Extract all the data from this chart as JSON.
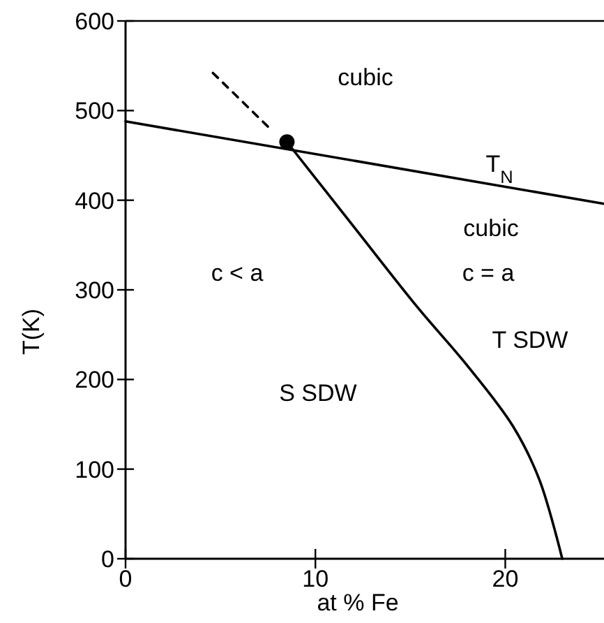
{
  "chart_data": {
    "type": "line",
    "xlabel": "at % Fe",
    "ylabel": "T(K)",
    "xlim": [
      0,
      25.2
    ],
    "ylim": [
      0,
      600
    ],
    "xticks": [
      0,
      10,
      20
    ],
    "yticks": [
      0,
      100,
      200,
      300,
      400,
      500,
      600
    ],
    "grid": false,
    "marker": "none",
    "series": [
      {
        "color": "#000000",
        "line_style": "solid",
        "x": [
          0,
          25.2
        ],
        "values": [
          488,
          396
        ]
      },
      {
        "color": "#000000",
        "line_style": "dashed",
        "x": [
          4.6,
          7.7
        ],
        "values": [
          542,
          478
        ]
      },
      {
        "color": "#000000",
        "line_style": "solid",
        "x": [
          8.5,
          12,
          15.4,
          17.9,
          20.4,
          21.8,
          23
        ],
        "values": [
          465,
          371,
          280,
          218,
          148,
          88,
          0
        ]
      },
      {
        "type": "scatter",
        "marker": "circle",
        "color": "#000000",
        "x": [
          8.5
        ],
        "values": [
          465
        ]
      }
    ],
    "annotations": [
      "cubic",
      "T$_{N}$",
      "cubic",
      "c = a",
      "c < a",
      "S SDW",
      "T SDW"
    ]
  }
}
